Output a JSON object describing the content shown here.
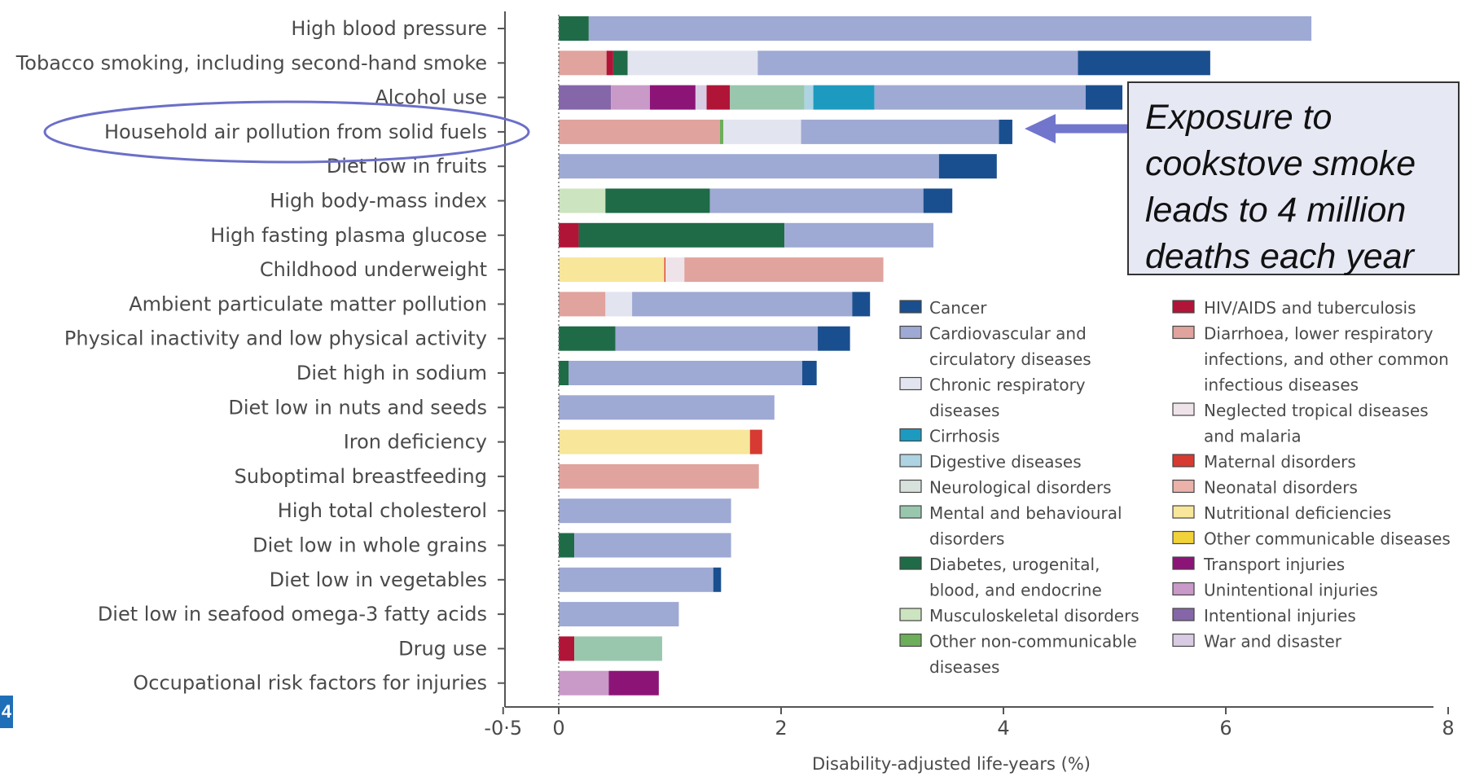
{
  "chart_data": {
    "type": "bar",
    "orientation": "horizontal",
    "stacked": true,
    "xlabel": "Disability-adjusted life-years (%)",
    "xlim": [
      -0.5,
      8.5
    ],
    "xticks": [
      {
        "value": -0.5,
        "label": "-0·5"
      },
      {
        "value": 0,
        "label": "0"
      },
      {
        "value": 2,
        "label": "2"
      },
      {
        "value": 4,
        "label": "4"
      },
      {
        "value": 6,
        "label": "6"
      },
      {
        "value": 8,
        "label": "8"
      }
    ],
    "grid": false,
    "legend_position": "right",
    "colors": {
      "cancer": "#1a4f8f",
      "cardio": "#9ea9d4",
      "chronic_resp": "#e2e4f0",
      "cirrhosis": "#1d9ac0",
      "digestive": "#aed3e2",
      "neuro": "#d7e2dd",
      "mental": "#98c7ad",
      "diabetes": "#1f6b47",
      "musculo": "#cce4bf",
      "other_ncd": "#6cae5a",
      "hiv_tb": "#b01538",
      "diarrhoea": "#e0a39d",
      "ntd": "#efe3ea",
      "maternal": "#d63a32",
      "neonatal": "#eab2aa",
      "nutritional": "#f8e69a",
      "other_comm": "#f1d23a",
      "transport": "#8c1477",
      "unintentional": "#c999c8",
      "intentional": "#8566a8",
      "war": "#d8cbe4"
    },
    "legend": [
      {
        "key": "cancer",
        "lines": [
          "Cancer"
        ]
      },
      {
        "key": "cardio",
        "lines": [
          "Cardiovascular and",
          "circulatory diseases"
        ]
      },
      {
        "key": "chronic_resp",
        "lines": [
          "Chronic respiratory",
          "diseases"
        ]
      },
      {
        "key": "cirrhosis",
        "lines": [
          "Cirrhosis"
        ]
      },
      {
        "key": "digestive",
        "lines": [
          "Digestive diseases"
        ]
      },
      {
        "key": "neuro",
        "lines": [
          "Neurological disorders"
        ]
      },
      {
        "key": "mental",
        "lines": [
          "Mental and behavioural",
          "disorders"
        ]
      },
      {
        "key": "diabetes",
        "lines": [
          "Diabetes, urogenital,",
          "blood, and endocrine"
        ]
      },
      {
        "key": "musculo",
        "lines": [
          "Musculoskeletal disorders"
        ]
      },
      {
        "key": "other_ncd",
        "lines": [
          "Other non-communicable",
          "diseases"
        ]
      },
      {
        "key": "hiv_tb",
        "lines": [
          "HIV/AIDS and tuberculosis"
        ]
      },
      {
        "key": "diarrhoea",
        "lines": [
          "Diarrhoea, lower respiratory",
          "infections, and other common",
          "infectious diseases"
        ]
      },
      {
        "key": "ntd",
        "lines": [
          "Neglected tropical diseases",
          "and malaria"
        ]
      },
      {
        "key": "maternal",
        "lines": [
          "Maternal disorders"
        ]
      },
      {
        "key": "neonatal",
        "lines": [
          "Neonatal disorders"
        ]
      },
      {
        "key": "nutritional",
        "lines": [
          "Nutritional deficiencies"
        ]
      },
      {
        "key": "other_comm",
        "lines": [
          "Other communicable diseases"
        ]
      },
      {
        "key": "transport",
        "lines": [
          "Transport injuries"
        ]
      },
      {
        "key": "unintentional",
        "lines": [
          "Unintentional injuries"
        ]
      },
      {
        "key": "intentional",
        "lines": [
          "Intentional injuries"
        ]
      },
      {
        "key": "war",
        "lines": [
          "War and disaster"
        ]
      }
    ],
    "categories": [
      {
        "label": "High blood pressure",
        "segments": [
          [
            "diabetes",
            0.27
          ],
          [
            "cardio",
            6.5
          ]
        ]
      },
      {
        "label": "Tobacco smoking, including second-hand smoke",
        "segments": [
          [
            "diarrhoea",
            0.43
          ],
          [
            "hiv_tb",
            0.06
          ],
          [
            "diabetes",
            0.13
          ],
          [
            "chronic_resp",
            1.17
          ],
          [
            "cardio",
            2.88
          ],
          [
            "cancer",
            1.19
          ]
        ]
      },
      {
        "label": "Alcohol use",
        "segments": [
          [
            "intentional",
            0.47
          ],
          [
            "unintentional",
            0.35
          ],
          [
            "transport",
            0.41
          ],
          [
            "war",
            0.1
          ],
          [
            "hiv_tb",
            0.21
          ],
          [
            "mental",
            0.67
          ],
          [
            "digestive",
            0.08
          ],
          [
            "cirrhosis",
            0.55
          ],
          [
            "cardio",
            1.9
          ],
          [
            "cancer",
            0.33
          ]
        ]
      },
      {
        "label": "Household air pollution from solid fuels",
        "segments": [
          [
            "diarrhoea",
            1.45
          ],
          [
            "other_ncd",
            0.03
          ],
          [
            "chronic_resp",
            0.7
          ],
          [
            "cardio",
            1.78
          ],
          [
            "cancer",
            0.12
          ]
        ]
      },
      {
        "label": "Diet low in fruits",
        "segments": [
          [
            "cardio",
            3.42
          ],
          [
            "cancer",
            0.52
          ]
        ]
      },
      {
        "label": "High body-mass index",
        "segments": [
          [
            "musculo",
            0.42
          ],
          [
            "diabetes",
            0.94
          ],
          [
            "cardio",
            1.92
          ],
          [
            "cancer",
            0.26
          ]
        ]
      },
      {
        "label": "High fasting plasma glucose",
        "segments": [
          [
            "hiv_tb",
            0.18
          ],
          [
            "diabetes",
            1.85
          ],
          [
            "cardio",
            1.34
          ]
        ]
      },
      {
        "label": "Childhood underweight",
        "segments": [
          [
            "nutritional",
            0.95
          ],
          [
            "maternal",
            0.01
          ],
          [
            "ntd",
            0.17
          ],
          [
            "diarrhoea",
            1.79
          ]
        ]
      },
      {
        "label": "Ambient particulate matter pollution",
        "segments": [
          [
            "diarrhoea",
            0.42
          ],
          [
            "chronic_resp",
            0.24
          ],
          [
            "cardio",
            1.98
          ],
          [
            "cancer",
            0.16
          ]
        ]
      },
      {
        "label": "Physical inactivity and low physical activity",
        "segments": [
          [
            "diabetes",
            0.51
          ],
          [
            "cardio",
            1.82
          ],
          [
            "cancer",
            0.29
          ]
        ]
      },
      {
        "label": "Diet high in sodium",
        "segments": [
          [
            "diabetes",
            0.09
          ],
          [
            "cardio",
            2.1
          ],
          [
            "cancer",
            0.13
          ]
        ]
      },
      {
        "label": "Diet low in nuts and seeds",
        "segments": [
          [
            "cardio",
            1.94
          ]
        ]
      },
      {
        "label": "Iron deficiency",
        "segments": [
          [
            "nutritional",
            1.72
          ],
          [
            "maternal",
            0.11
          ]
        ]
      },
      {
        "label": "Suboptimal breastfeeding",
        "segments": [
          [
            "diarrhoea",
            1.8
          ]
        ]
      },
      {
        "label": "High total cholesterol",
        "segments": [
          [
            "cardio",
            1.55
          ]
        ]
      },
      {
        "label": "Diet low in whole grains",
        "segments": [
          [
            "diabetes",
            0.14
          ],
          [
            "cardio",
            1.41
          ]
        ]
      },
      {
        "label": "Diet low in vegetables",
        "segments": [
          [
            "cardio",
            1.39
          ],
          [
            "cancer",
            0.07
          ]
        ]
      },
      {
        "label": "Diet low in seafood omega-3 fatty acids",
        "segments": [
          [
            "cardio",
            1.08
          ]
        ]
      },
      {
        "label": "Drug use",
        "segments": [
          [
            "hiv_tb",
            0.14
          ],
          [
            "mental",
            0.79
          ]
        ]
      },
      {
        "label": "Occupational risk factors for injuries",
        "segments": [
          [
            "unintentional",
            0.45
          ],
          [
            "transport",
            0.45
          ]
        ]
      }
    ]
  },
  "callout": {
    "lines": [
      "Exposure to",
      "cookstove smoke",
      "leads to 4 million",
      "deaths each year"
    ]
  },
  "slide_number": "4"
}
